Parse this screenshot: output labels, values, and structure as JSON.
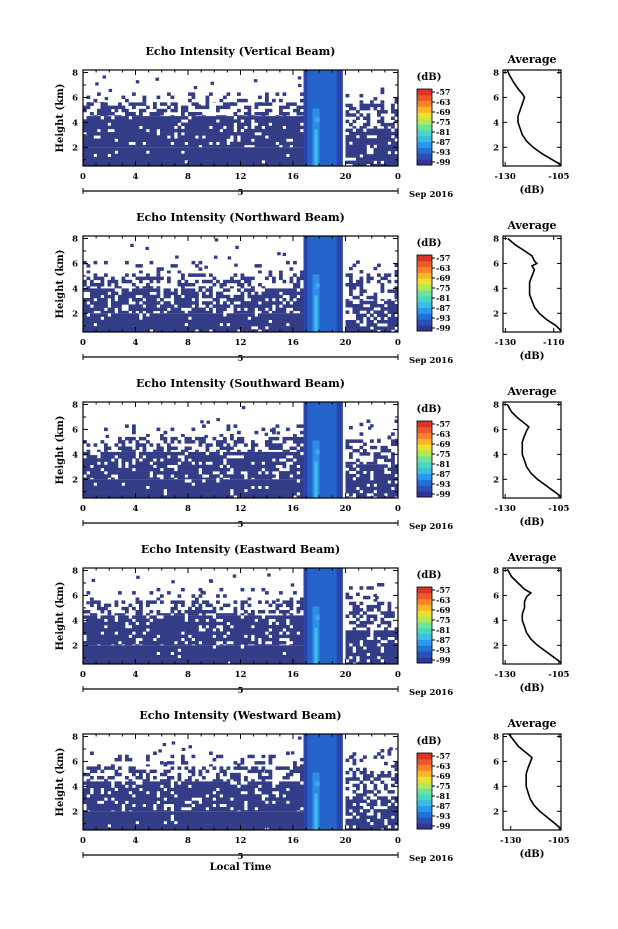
{
  "figure": {
    "date_label": "Sep 2016",
    "bottom_xlabel": "Local Time"
  },
  "colorbar": {
    "unit": "(dB)",
    "ticks": [
      "-57",
      "-63",
      "-69",
      "-75",
      "-81",
      "-87",
      "-93",
      "-99"
    ],
    "colors": [
      "#313695",
      "#2c4fb5",
      "#2171d6",
      "#2c97f0",
      "#3dbde6",
      "#46d8c4",
      "#6fe39a",
      "#b2e75a",
      "#e9e32f",
      "#fbb628",
      "#f8832a",
      "#ec5a2c",
      "#da3328"
    ]
  },
  "chart_data": [
    {
      "type": "heatmap",
      "title": "Echo Intensity (Vertical Beam)",
      "ylabel": "Height (km)",
      "x_ticks": [
        "0",
        "4",
        "8",
        "12",
        "16",
        "20",
        "0"
      ],
      "y_ticks": [
        "2",
        "4",
        "6",
        "8"
      ],
      "xlim": [
        0,
        24
      ],
      "ylim": [
        0.5,
        8.2
      ],
      "day_label": "5",
      "bands": [
        {
          "x": [
            0,
            17
          ],
          "y": [
            0.5,
            2.0
          ],
          "coverage": 0.98
        },
        {
          "x": [
            0,
            17
          ],
          "y": [
            2.0,
            4.5
          ],
          "coverage": 0.9
        },
        {
          "x": [
            0,
            17
          ],
          "y": [
            4.5,
            5.6
          ],
          "coverage": 0.45
        },
        {
          "x": [
            0,
            17
          ],
          "y": [
            5.6,
            6.4
          ],
          "coverage": 0.18
        },
        {
          "x": [
            20,
            24
          ],
          "y": [
            0.5,
            3.5
          ],
          "coverage": 0.85
        },
        {
          "x": [
            20,
            24
          ],
          "y": [
            3.5,
            5.5
          ],
          "coverage": 0.4
        },
        {
          "x": [
            20,
            24
          ],
          "y": [
            5.5,
            6.8
          ],
          "coverage": 0.12
        }
      ],
      "strong_event": {
        "x": [
          16.8,
          19.8
        ],
        "y": [
          0.5,
          8.2
        ]
      },
      "profile": {
        "title": "Average",
        "xlabel": "(dB)",
        "x_ticks": [
          "-130",
          "-105"
        ],
        "xlim": [
          -131,
          -104
        ],
        "y_ticks": [
          "2",
          "4",
          "6",
          "8"
        ],
        "ylim": [
          0.5,
          8.2
        ],
        "points": [
          [
            -104,
            0.6
          ],
          [
            -108,
            1.0
          ],
          [
            -113,
            1.5
          ],
          [
            -117,
            2.0
          ],
          [
            -120,
            2.5
          ],
          [
            -122,
            3.0
          ],
          [
            -123,
            3.5
          ],
          [
            -124,
            4.0
          ],
          [
            -124,
            4.5
          ],
          [
            -123,
            5.0
          ],
          [
            -122,
            5.5
          ],
          [
            -121,
            6.0
          ],
          [
            -122,
            6.3
          ],
          [
            -124,
            6.7
          ],
          [
            -126,
            7.2
          ],
          [
            -128,
            7.8
          ],
          [
            -129,
            8.2
          ]
        ]
      }
    },
    {
      "type": "heatmap",
      "title": "Echo Intensity (Northward Beam)",
      "ylabel": "Height (km)",
      "x_ticks": [
        "0",
        "4",
        "8",
        "12",
        "16",
        "20",
        "0"
      ],
      "y_ticks": [
        "2",
        "4",
        "6",
        "8"
      ],
      "xlim": [
        0,
        24
      ],
      "ylim": [
        0.5,
        8.2
      ],
      "day_label": "5",
      "bands": [
        {
          "x": [
            0,
            17
          ],
          "y": [
            0.5,
            2.0
          ],
          "coverage": 0.95
        },
        {
          "x": [
            0,
            17
          ],
          "y": [
            2.0,
            4.0
          ],
          "coverage": 0.72
        },
        {
          "x": [
            0,
            17
          ],
          "y": [
            4.0,
            5.2
          ],
          "coverage": 0.35
        },
        {
          "x": [
            0,
            17
          ],
          "y": [
            5.2,
            6.2
          ],
          "coverage": 0.12
        },
        {
          "x": [
            20,
            24
          ],
          "y": [
            0.5,
            3.0
          ],
          "coverage": 0.7
        },
        {
          "x": [
            20,
            24
          ],
          "y": [
            3.0,
            5.2
          ],
          "coverage": 0.4
        },
        {
          "x": [
            20,
            24
          ],
          "y": [
            5.2,
            6.5
          ],
          "coverage": 0.15
        }
      ],
      "strong_event": {
        "x": [
          16.8,
          19.8
        ],
        "y": [
          0.5,
          8.2
        ]
      },
      "profile": {
        "title": "Average",
        "xlabel": "(dB)",
        "x_ticks": [
          "-130",
          "-110"
        ],
        "xlim": [
          -131,
          -107
        ],
        "y_ticks": [
          "2",
          "4",
          "6",
          "8"
        ],
        "ylim": [
          0.5,
          8.2
        ],
        "points": [
          [
            -107,
            0.6
          ],
          [
            -109,
            1.0
          ],
          [
            -113,
            1.5
          ],
          [
            -116,
            2.0
          ],
          [
            -118,
            2.5
          ],
          [
            -119,
            3.0
          ],
          [
            -120,
            3.5
          ],
          [
            -120,
            4.0
          ],
          [
            -120,
            4.5
          ],
          [
            -119,
            5.0
          ],
          [
            -118,
            5.5
          ],
          [
            -119,
            5.8
          ],
          [
            -117,
            6.0
          ],
          [
            -118,
            6.2
          ],
          [
            -119,
            6.6
          ],
          [
            -122,
            7.0
          ],
          [
            -126,
            7.5
          ],
          [
            -129,
            8.0
          ]
        ]
      }
    },
    {
      "type": "heatmap",
      "title": "Echo Intensity (Southward Beam)",
      "ylabel": "Height (km)",
      "x_ticks": [
        "0",
        "4",
        "8",
        "12",
        "16",
        "20",
        "0"
      ],
      "y_ticks": [
        "2",
        "4",
        "6",
        "8"
      ],
      "xlim": [
        0,
        24
      ],
      "ylim": [
        0.5,
        8.2
      ],
      "day_label": "5",
      "bands": [
        {
          "x": [
            0,
            17
          ],
          "y": [
            0.5,
            2.0
          ],
          "coverage": 0.96
        },
        {
          "x": [
            0,
            17
          ],
          "y": [
            2.0,
            4.2
          ],
          "coverage": 0.8
        },
        {
          "x": [
            0,
            17
          ],
          "y": [
            4.2,
            5.4
          ],
          "coverage": 0.4
        },
        {
          "x": [
            0,
            17
          ],
          "y": [
            5.4,
            6.4
          ],
          "coverage": 0.12
        },
        {
          "x": [
            20,
            24
          ],
          "y": [
            0.5,
            3.2
          ],
          "coverage": 0.8
        },
        {
          "x": [
            20,
            24
          ],
          "y": [
            3.2,
            5.2
          ],
          "coverage": 0.4
        },
        {
          "x": [
            20,
            24
          ],
          "y": [
            5.2,
            6.8
          ],
          "coverage": 0.14
        }
      ],
      "strong_event": {
        "x": [
          16.8,
          19.8
        ],
        "y": [
          0.5,
          8.2
        ]
      },
      "profile": {
        "title": "Average",
        "xlabel": "(dB)",
        "x_ticks": [
          "-130",
          "-105"
        ],
        "xlim": [
          -131,
          -104
        ],
        "y_ticks": [
          "2",
          "4",
          "6",
          "8"
        ],
        "ylim": [
          0.5,
          8.2
        ],
        "points": [
          [
            -104,
            0.6
          ],
          [
            -107,
            1.0
          ],
          [
            -111,
            1.5
          ],
          [
            -115,
            2.0
          ],
          [
            -118,
            2.5
          ],
          [
            -120,
            3.0
          ],
          [
            -121,
            3.5
          ],
          [
            -122,
            4.0
          ],
          [
            -122,
            4.5
          ],
          [
            -122,
            5.0
          ],
          [
            -121,
            5.5
          ],
          [
            -120,
            5.9
          ],
          [
            -119,
            6.2
          ],
          [
            -121,
            6.5
          ],
          [
            -124,
            6.9
          ],
          [
            -127,
            7.4
          ],
          [
            -129,
            8.0
          ]
        ]
      }
    },
    {
      "type": "heatmap",
      "title": "Echo Intensity (Eastward Beam)",
      "ylabel": "Height (km)",
      "x_ticks": [
        "0",
        "4",
        "8",
        "12",
        "16",
        "20",
        "0"
      ],
      "y_ticks": [
        "2",
        "4",
        "6",
        "8"
      ],
      "xlim": [
        0,
        24
      ],
      "ylim": [
        0.5,
        8.2
      ],
      "day_label": "5",
      "bands": [
        {
          "x": [
            0,
            17
          ],
          "y": [
            0.5,
            2.0
          ],
          "coverage": 0.97
        },
        {
          "x": [
            0,
            17
          ],
          "y": [
            2.0,
            4.4
          ],
          "coverage": 0.82
        },
        {
          "x": [
            0,
            17
          ],
          "y": [
            4.4,
            5.6
          ],
          "coverage": 0.4
        },
        {
          "x": [
            0,
            17
          ],
          "y": [
            5.6,
            6.6
          ],
          "coverage": 0.14
        },
        {
          "x": [
            20,
            24
          ],
          "y": [
            0.5,
            3.2
          ],
          "coverage": 0.82
        },
        {
          "x": [
            20,
            24
          ],
          "y": [
            3.2,
            5.5
          ],
          "coverage": 0.45
        },
        {
          "x": [
            20,
            24
          ],
          "y": [
            5.5,
            7.0
          ],
          "coverage": 0.15
        }
      ],
      "strong_event": {
        "x": [
          16.8,
          19.8
        ],
        "y": [
          0.5,
          8.2
        ]
      },
      "profile": {
        "title": "Average",
        "xlabel": "(dB)",
        "x_ticks": [
          "-130",
          "-105"
        ],
        "xlim": [
          -131,
          -104
        ],
        "y_ticks": [
          "2",
          "4",
          "6",
          "8"
        ],
        "ylim": [
          0.5,
          8.2
        ],
        "points": [
          [
            -104,
            0.6
          ],
          [
            -107,
            1.0
          ],
          [
            -111,
            1.5
          ],
          [
            -115,
            2.0
          ],
          [
            -118,
            2.5
          ],
          [
            -120,
            3.0
          ],
          [
            -121,
            3.5
          ],
          [
            -122,
            4.0
          ],
          [
            -122,
            4.5
          ],
          [
            -121,
            5.0
          ],
          [
            -121,
            5.5
          ],
          [
            -120,
            5.9
          ],
          [
            -118,
            6.2
          ],
          [
            -121,
            6.5
          ],
          [
            -124,
            7.0
          ],
          [
            -127,
            7.5
          ],
          [
            -129,
            8.1
          ]
        ]
      }
    },
    {
      "type": "heatmap",
      "title": "Echo Intensity (Westward Beam)",
      "ylabel": "Height (km)",
      "x_ticks": [
        "0",
        "4",
        "8",
        "12",
        "16",
        "20",
        "0"
      ],
      "y_ticks": [
        "2",
        "4",
        "6",
        "8"
      ],
      "xlim": [
        0,
        24
      ],
      "ylim": [
        0.5,
        8.2
      ],
      "day_label": "5",
      "xlabel": "Local Time",
      "bands": [
        {
          "x": [
            0,
            17
          ],
          "y": [
            0.5,
            2.0
          ],
          "coverage": 0.97
        },
        {
          "x": [
            0,
            17
          ],
          "y": [
            2.0,
            4.4
          ],
          "coverage": 0.84
        },
        {
          "x": [
            0,
            17
          ],
          "y": [
            4.4,
            5.6
          ],
          "coverage": 0.42
        },
        {
          "x": [
            0,
            17
          ],
          "y": [
            5.6,
            6.8
          ],
          "coverage": 0.14
        },
        {
          "x": [
            20,
            24
          ],
          "y": [
            0.5,
            3.2
          ],
          "coverage": 0.8
        },
        {
          "x": [
            20,
            24
          ],
          "y": [
            3.2,
            5.5
          ],
          "coverage": 0.42
        },
        {
          "x": [
            20,
            24
          ],
          "y": [
            5.5,
            7.0
          ],
          "coverage": 0.15
        }
      ],
      "strong_event": {
        "x": [
          16.8,
          19.8
        ],
        "y": [
          0.5,
          8.2
        ]
      },
      "profile": {
        "title": "Average",
        "xlabel": "(dB)",
        "x_ticks": [
          "-130",
          "-105"
        ],
        "xlim": [
          -134,
          -104
        ],
        "y_ticks": [
          "2",
          "4",
          "6",
          "8"
        ],
        "ylim": [
          0.5,
          8.2
        ],
        "points": [
          [
            -104,
            0.6
          ],
          [
            -107,
            1.0
          ],
          [
            -111,
            1.5
          ],
          [
            -115,
            2.0
          ],
          [
            -118,
            2.5
          ],
          [
            -120,
            3.0
          ],
          [
            -121,
            3.5
          ],
          [
            -122,
            4.0
          ],
          [
            -122,
            4.5
          ],
          [
            -122,
            5.0
          ],
          [
            -121,
            5.5
          ],
          [
            -120,
            5.9
          ],
          [
            -119,
            6.3
          ],
          [
            -122,
            6.7
          ],
          [
            -126,
            7.2
          ],
          [
            -129,
            7.8
          ],
          [
            -131,
            8.2
          ]
        ]
      }
    }
  ]
}
